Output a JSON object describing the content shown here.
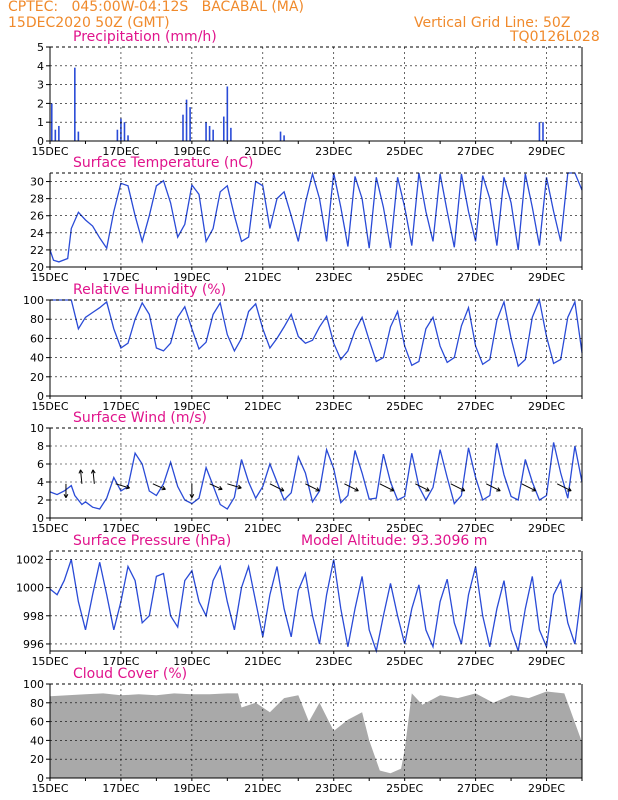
{
  "header": {
    "line1": "CPTEC:   045:00W-04:12S   BACABAL (MA)",
    "line2": "15DEC2020 50Z (GMT)",
    "grid_label": "Vertical Grid Line: 50Z",
    "run_id": "TQ0126L028"
  },
  "x_labels": [
    "15DEC",
    "17DEC",
    "19DEC",
    "21DEC",
    "23DEC",
    "25DEC",
    "27DEC",
    "29DEC"
  ],
  "pressure_altitude_label": "Model Altitude: 93.3096 m",
  "colors": {
    "header": "#f08a2c",
    "title": "#e0148c",
    "series": "#2a4bd7",
    "cloud": "#a9a9a9"
  },
  "chart_data": [
    {
      "type": "bar",
      "title": "Precipitation (mm/h)",
      "ylim": [
        0,
        5
      ],
      "yticks": [
        0,
        1,
        2,
        3,
        4,
        5
      ],
      "x_unit": "days since 15DEC 00Z",
      "bars": [
        [
          0.05,
          2.0
        ],
        [
          0.15,
          0.6
        ],
        [
          0.25,
          0.8
        ],
        [
          0.7,
          3.9
        ],
        [
          0.8,
          0.5
        ],
        [
          1.9,
          0.6
        ],
        [
          2.0,
          1.2
        ],
        [
          2.1,
          1.0
        ],
        [
          2.2,
          0.3
        ],
        [
          3.75,
          1.4
        ],
        [
          3.85,
          2.2
        ],
        [
          3.95,
          1.8
        ],
        [
          4.4,
          1.0
        ],
        [
          4.5,
          0.8
        ],
        [
          4.6,
          0.6
        ],
        [
          4.9,
          1.3
        ],
        [
          5.0,
          2.9
        ],
        [
          5.1,
          0.7
        ],
        [
          6.5,
          0.5
        ],
        [
          6.6,
          0.3
        ],
        [
          13.8,
          1.0
        ],
        [
          13.9,
          1.0
        ]
      ],
      "grid_x_days": [
        0,
        2,
        4,
        6,
        8,
        10,
        12,
        14
      ]
    },
    {
      "type": "line",
      "title": "Surface Temperature (nC)",
      "ylim": [
        20,
        31
      ],
      "yticks": [
        20,
        22,
        24,
        26,
        28,
        30
      ],
      "x": [
        0.0,
        0.1,
        0.25,
        0.5,
        0.6,
        0.8,
        1.0,
        1.2,
        1.4,
        1.6,
        1.8,
        2.0,
        2.2,
        2.4,
        2.6,
        2.8,
        3.0,
        3.2,
        3.4,
        3.6,
        3.8,
        4.0,
        4.2,
        4.4,
        4.6,
        4.8,
        5.0,
        5.2,
        5.4,
        5.6,
        5.8,
        6.0,
        6.2,
        6.4,
        6.6,
        6.8,
        7.0,
        7.2,
        7.4,
        7.6,
        7.8,
        8.0,
        8.2,
        8.4,
        8.6,
        8.8,
        9.0,
        9.2,
        9.4,
        9.6,
        9.8,
        10.0,
        10.2,
        10.4,
        10.6,
        10.8,
        11.0,
        11.2,
        11.4,
        11.6,
        11.8,
        12.0,
        12.2,
        12.4,
        12.6,
        12.8,
        13.0,
        13.2,
        13.4,
        13.6,
        13.8,
        14.0,
        14.2,
        14.4,
        14.6,
        14.8,
        15.0
      ],
      "y": [
        22.0,
        20.8,
        20.6,
        21.0,
        24.5,
        26.4,
        25.5,
        24.8,
        23.4,
        22.2,
        26.5,
        29.8,
        29.5,
        26.0,
        23.0,
        26.0,
        29.5,
        30.1,
        27.5,
        23.5,
        25.0,
        29.6,
        28.5,
        23.0,
        24.5,
        28.8,
        29.5,
        26.0,
        23.0,
        23.5,
        30.0,
        29.5,
        24.5,
        28.0,
        28.8,
        26.0,
        23.0,
        27.5,
        30.9,
        28.0,
        23.0,
        31.0,
        27.0,
        22.4,
        30.6,
        28.0,
        22.2,
        30.5,
        27.0,
        22.2,
        30.5,
        27.0,
        22.5,
        31.0,
        26.5,
        23.0,
        30.9,
        26.5,
        22.3,
        30.9,
        26.5,
        23.0,
        30.7,
        28.0,
        22.5,
        30.5,
        27.5,
        22.0,
        30.9,
        27.0,
        22.5,
        30.5,
        26.5,
        23.0,
        31.0,
        31.0,
        29.0
      ]
    },
    {
      "type": "line",
      "title": "Relative Humidity (%)",
      "ylim": [
        0,
        100
      ],
      "yticks": [
        0,
        20,
        40,
        60,
        80,
        100
      ],
      "x": [
        0.0,
        0.2,
        0.4,
        0.6,
        0.8,
        1.0,
        1.2,
        1.4,
        1.6,
        1.8,
        2.0,
        2.2,
        2.4,
        2.6,
        2.8,
        3.0,
        3.2,
        3.4,
        3.6,
        3.8,
        4.0,
        4.2,
        4.4,
        4.6,
        4.8,
        5.0,
        5.2,
        5.4,
        5.6,
        5.8,
        6.0,
        6.2,
        6.4,
        6.6,
        6.8,
        7.0,
        7.2,
        7.4,
        7.6,
        7.8,
        8.0,
        8.2,
        8.4,
        8.6,
        8.8,
        9.0,
        9.2,
        9.4,
        9.6,
        9.8,
        10.0,
        10.2,
        10.4,
        10.6,
        10.8,
        11.0,
        11.2,
        11.4,
        11.6,
        11.8,
        12.0,
        12.2,
        12.4,
        12.6,
        12.8,
        13.0,
        13.2,
        13.4,
        13.6,
        13.8,
        14.0,
        14.2,
        14.4,
        14.6,
        14.8,
        15.0
      ],
      "y": [
        100,
        100,
        100,
        100,
        70,
        82,
        87,
        92,
        98,
        70,
        50,
        55,
        80,
        97,
        85,
        50,
        47,
        55,
        82,
        93,
        70,
        49,
        56,
        85,
        97,
        64,
        47,
        60,
        88,
        96,
        70,
        50,
        60,
        72,
        85,
        62,
        55,
        58,
        72,
        83,
        55,
        38,
        47,
        68,
        82,
        58,
        36,
        40,
        72,
        88,
        52,
        32,
        36,
        70,
        82,
        52,
        35,
        40,
        73,
        92,
        52,
        33,
        38,
        79,
        98,
        60,
        31,
        38,
        82,
        100,
        62,
        34,
        38,
        82,
        98,
        45
      ]
    },
    {
      "type": "line",
      "title": "Surface Wind (m/s)",
      "ylim": [
        0,
        10
      ],
      "yticks": [
        0,
        2,
        4,
        6,
        8,
        10
      ],
      "x": [
        0.0,
        0.2,
        0.4,
        0.6,
        0.7,
        0.9,
        1.0,
        1.2,
        1.4,
        1.6,
        1.8,
        2.0,
        2.2,
        2.4,
        2.6,
        2.8,
        3.0,
        3.2,
        3.4,
        3.6,
        3.8,
        4.0,
        4.2,
        4.4,
        4.6,
        4.8,
        5.0,
        5.2,
        5.4,
        5.6,
        5.8,
        6.0,
        6.2,
        6.4,
        6.6,
        6.8,
        7.0,
        7.2,
        7.4,
        7.6,
        7.8,
        8.0,
        8.2,
        8.4,
        8.6,
        8.8,
        9.0,
        9.2,
        9.4,
        9.6,
        9.8,
        10.0,
        10.2,
        10.4,
        10.6,
        10.8,
        11.0,
        11.2,
        11.4,
        11.6,
        11.8,
        12.0,
        12.2,
        12.4,
        12.6,
        12.8,
        13.0,
        13.2,
        13.4,
        13.6,
        13.8,
        14.0,
        14.2,
        14.4,
        14.6,
        14.8,
        15.0
      ],
      "y": [
        2.9,
        2.6,
        3.0,
        3.6,
        2.5,
        1.5,
        1.8,
        1.2,
        1.0,
        2.2,
        4.5,
        3.0,
        3.5,
        7.2,
        6.0,
        3.0,
        2.5,
        3.8,
        6.2,
        3.5,
        2.0,
        1.6,
        2.2,
        5.6,
        3.6,
        1.5,
        1.0,
        2.3,
        6.5,
        4.0,
        2.2,
        3.5,
        6.0,
        4.0,
        2.0,
        2.8,
        6.8,
        5.0,
        1.8,
        3.0,
        7.6,
        5.5,
        1.7,
        2.5,
        7.5,
        5.0,
        2.1,
        2.2,
        7.1,
        4.0,
        2.0,
        2.4,
        7.2,
        3.5,
        2.0,
        3.4,
        7.6,
        4.5,
        1.6,
        2.5,
        7.8,
        4.5,
        2.0,
        2.5,
        8.3,
        4.8,
        2.4,
        2.0,
        6.5,
        4.0,
        2.0,
        2.5,
        8.4,
        5.0,
        2.2,
        8.0,
        4.0
      ],
      "vectors": [
        [
          0.45,
          0.0,
          -1.0
        ],
        [
          0.9,
          -0.1,
          1.0
        ],
        [
          1.25,
          -0.1,
          1.0
        ],
        [
          1.85,
          1.0,
          -0.3
        ],
        [
          2.9,
          0.9,
          -0.4
        ],
        [
          4.0,
          0.0,
          -1.0
        ],
        [
          4.5,
          0.9,
          -0.4
        ],
        [
          5.0,
          1.0,
          -0.3
        ],
        [
          6.2,
          1.0,
          -0.5
        ],
        [
          7.2,
          1.0,
          -0.5
        ],
        [
          8.3,
          1.0,
          -0.5
        ],
        [
          9.3,
          1.0,
          -0.5
        ],
        [
          10.3,
          1.0,
          -0.5
        ],
        [
          11.3,
          1.0,
          -0.5
        ],
        [
          12.3,
          1.0,
          -0.5
        ],
        [
          13.3,
          1.0,
          -0.5
        ],
        [
          14.3,
          1.0,
          -0.5
        ]
      ]
    },
    {
      "type": "line",
      "title": "Surface Pressure (hPa)",
      "ylim": [
        995.5,
        1002.6
      ],
      "yticks": [
        996,
        998,
        1000,
        1002
      ],
      "x": [
        0.0,
        0.2,
        0.4,
        0.6,
        0.8,
        1.0,
        1.2,
        1.4,
        1.6,
        1.8,
        2.0,
        2.2,
        2.4,
        2.6,
        2.8,
        3.0,
        3.2,
        3.4,
        3.6,
        3.8,
        4.0,
        4.2,
        4.4,
        4.6,
        4.8,
        5.0,
        5.2,
        5.4,
        5.6,
        5.8,
        6.0,
        6.2,
        6.4,
        6.6,
        6.8,
        7.0,
        7.2,
        7.4,
        7.6,
        7.8,
        8.0,
        8.2,
        8.4,
        8.6,
        8.8,
        9.0,
        9.2,
        9.4,
        9.6,
        9.8,
        10.0,
        10.2,
        10.4,
        10.6,
        10.8,
        11.0,
        11.2,
        11.4,
        11.6,
        11.8,
        12.0,
        12.2,
        12.4,
        12.6,
        12.8,
        13.0,
        13.2,
        13.4,
        13.6,
        13.8,
        14.0,
        14.2,
        14.4,
        14.6,
        14.8,
        15.0
      ],
      "y": [
        999.9,
        999.5,
        1000.5,
        1002.0,
        999.0,
        997.0,
        999.5,
        1001.8,
        999.5,
        997.0,
        999.0,
        1001.5,
        1000.5,
        997.5,
        998.0,
        1000.8,
        1001.0,
        998.0,
        997.2,
        1000.5,
        1001.2,
        999.0,
        998.0,
        1000.5,
        1001.5,
        999.0,
        997.0,
        1000.0,
        1001.5,
        999.0,
        996.5,
        999.5,
        1001.5,
        998.5,
        996.5,
        999.8,
        1001.0,
        998.0,
        996.0,
        999.5,
        1002.0,
        998.5,
        995.8,
        998.5,
        1000.8,
        997.0,
        995.5,
        998.0,
        1000.3,
        998.0,
        996.0,
        998.5,
        1000.2,
        997.0,
        995.8,
        999.0,
        1000.6,
        997.5,
        996.0,
        999.5,
        1001.5,
        998.0,
        995.8,
        998.5,
        1000.5,
        997.0,
        995.5,
        998.5,
        1000.8,
        997.0,
        995.8,
        999.5,
        1000.5,
        997.5,
        996.0,
        1000.0
      ]
    },
    {
      "type": "area",
      "title": "Cloud Cover (%)",
      "ylim": [
        0,
        100
      ],
      "yticks": [
        0,
        20,
        40,
        60,
        80,
        100
      ],
      "x": [
        0.0,
        0.5,
        1.0,
        1.5,
        2.0,
        2.5,
        3.0,
        3.5,
        4.0,
        4.5,
        5.0,
        5.3,
        5.4,
        5.8,
        6.2,
        6.6,
        7.0,
        7.3,
        7.6,
        8.0,
        8.4,
        8.8,
        9.0,
        9.3,
        9.6,
        9.9,
        10.0,
        10.2,
        10.5,
        11.0,
        11.5,
        12.0,
        12.5,
        13.0,
        13.5,
        14.0,
        14.5,
        15.0
      ],
      "y": [
        87,
        88,
        89,
        90,
        88,
        89,
        88,
        90,
        89,
        89,
        90,
        90,
        75,
        80,
        70,
        85,
        88,
        60,
        80,
        50,
        62,
        70,
        40,
        8,
        5,
        10,
        30,
        90,
        78,
        88,
        85,
        90,
        80,
        88,
        85,
        92,
        90,
        38
      ]
    }
  ]
}
